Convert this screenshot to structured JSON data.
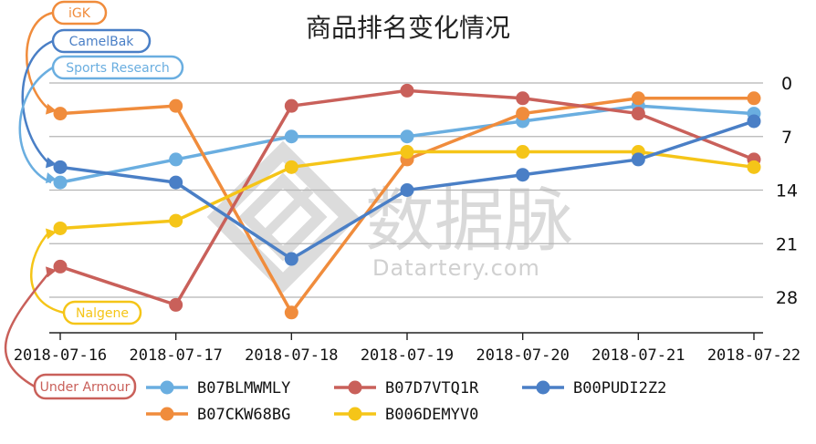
{
  "chart_data": {
    "type": "line",
    "title": "商品排名变化情况",
    "categories": [
      "2018-07-16",
      "2018-07-17",
      "2018-07-18",
      "2018-07-19",
      "2018-07-20",
      "2018-07-21",
      "2018-07-22"
    ],
    "y_axis": {
      "ticks": [
        0,
        7,
        14,
        21,
        28
      ],
      "range": [
        -1.5,
        32.5
      ],
      "inverted": true,
      "position": "right"
    },
    "grid": "horizontal",
    "legend_position": "bottom",
    "series": [
      {
        "name": "B07BLMWMLY",
        "color": "#6aaee0",
        "values": [
          13,
          10,
          7,
          7,
          5,
          3,
          4
        ]
      },
      {
        "name": "B07CKW68BG",
        "color": "#f08c3c",
        "values": [
          4,
          3,
          30,
          10,
          4,
          2,
          2
        ]
      },
      {
        "name": "B07D7VTQ1R",
        "color": "#c9605a",
        "values": [
          24,
          29,
          3,
          1,
          2,
          4,
          10
        ]
      },
      {
        "name": "B006DEMYV0",
        "color": "#f5c518",
        "values": [
          19,
          18,
          11,
          9,
          9,
          9,
          11
        ]
      },
      {
        "name": "B00PUDI2Z2",
        "color": "#4a7fc6",
        "values": [
          11,
          13,
          23,
          14,
          12,
          10,
          5
        ]
      }
    ],
    "annotations": [
      {
        "label": "iGK",
        "series": "B07CKW68BG",
        "color": "#f08c3c"
      },
      {
        "label": "CamelBak",
        "series": "B00PUDI2Z2",
        "color": "#4a7fc6"
      },
      {
        "label": "Sports Research",
        "series": "B07BLMWMLY",
        "color": "#6aaee0"
      },
      {
        "label": "Nalgene",
        "series": "B006DEMYV0",
        "color": "#f5c518"
      },
      {
        "label": "Under Armour",
        "series": "B07D7VTQ1R",
        "color": "#c9605a"
      }
    ]
  },
  "watermark": {
    "cn": "数据脉",
    "en": "Datartery.com"
  }
}
